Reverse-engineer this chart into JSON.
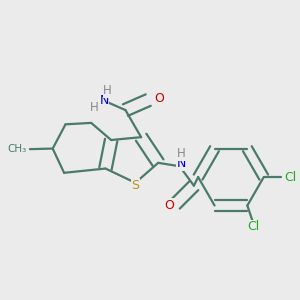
{
  "bg_color": "#ebebeb",
  "bond_color": "#4a7a6a",
  "S_color": "#b8960c",
  "N_color": "#0000cc",
  "O_color": "#cc0000",
  "Cl_color": "#22aa22",
  "H_color": "#888888",
  "lw": 1.6,
  "dbo": 0.022,
  "figsize": [
    3.0,
    3.0
  ],
  "dpi": 100,
  "xlim": [
    0.0,
    1.0
  ],
  "ylim": [
    0.1,
    0.95
  ]
}
